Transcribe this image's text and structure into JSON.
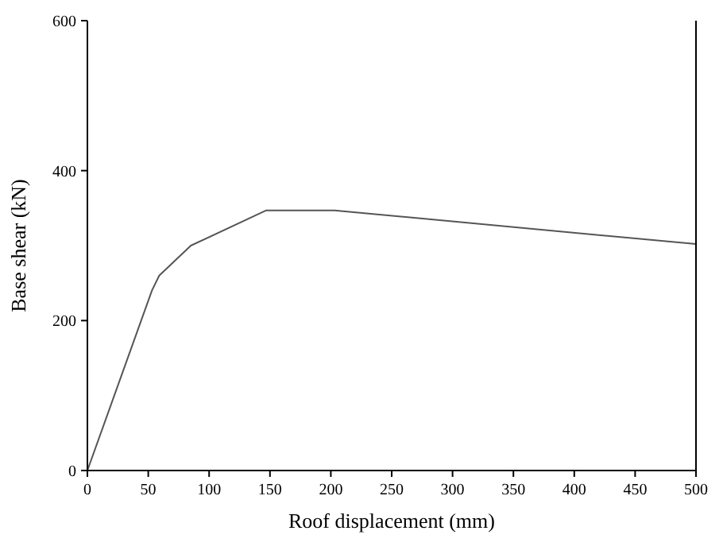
{
  "chart_data": {
    "type": "line",
    "xlabel": "Roof displacement (mm)",
    "ylabel": "Base shear (kN)",
    "x": [
      0,
      53,
      59,
      85,
      147,
      203,
      500
    ],
    "series": [
      {
        "color": "#555555",
        "values": [
          0,
          240,
          260,
          300,
          347,
          347,
          302
        ]
      }
    ],
    "xlim": [
      0,
      500
    ],
    "xticks": [
      0,
      50,
      100,
      150,
      200,
      250,
      300,
      350,
      400,
      450,
      500
    ],
    "ylim": [
      0,
      600
    ],
    "yticks": [
      0,
      200,
      400,
      600
    ],
    "grid": false,
    "marker": "none",
    "line_style": "solid"
  }
}
